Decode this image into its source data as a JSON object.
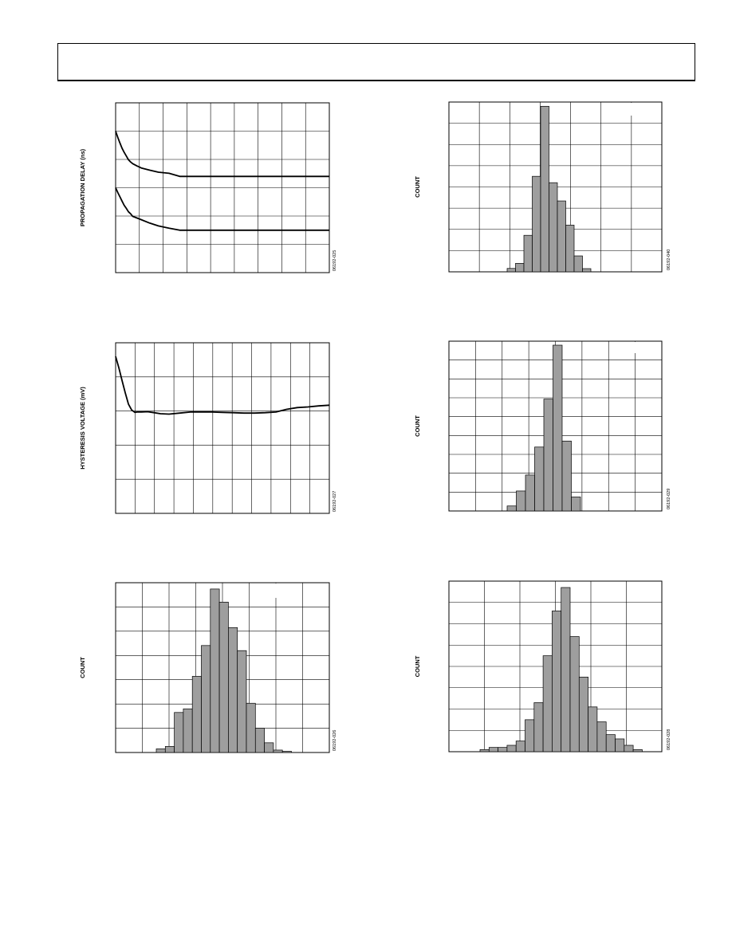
{
  "header": {
    "text": ""
  },
  "chart_data": [
    {
      "type": "line",
      "ylabel": "PROPAGATION DELAY (ns)",
      "figure_id": "06192-025",
      "grid": true,
      "xlim": [
        0,
        100
      ],
      "ylim": [
        0,
        6
      ],
      "series": [
        {
          "x": [
            0,
            1,
            2,
            3,
            4,
            5,
            6,
            7,
            8,
            10,
            12,
            16,
            20,
            25,
            30,
            40,
            50,
            60,
            70,
            80,
            90,
            100
          ],
          "y": [
            5.0,
            4.78,
            4.58,
            4.4,
            4.25,
            4.12,
            3.99,
            3.91,
            3.85,
            3.77,
            3.7,
            3.62,
            3.55,
            3.51,
            3.4,
            3.4,
            3.4,
            3.4,
            3.4,
            3.4,
            3.4,
            3.4
          ]
        },
        {
          "x": [
            0,
            1,
            2,
            3,
            4,
            5,
            6,
            7,
            8,
            10,
            12,
            16,
            20,
            25,
            30,
            40,
            50,
            60,
            70,
            80,
            90,
            100
          ],
          "y": [
            3.0,
            2.83,
            2.68,
            2.53,
            2.38,
            2.27,
            2.15,
            2.08,
            1.99,
            1.93,
            1.87,
            1.75,
            1.65,
            1.57,
            1.5,
            1.5,
            1.5,
            1.5,
            1.5,
            1.5,
            1.5,
            1.5
          ]
        }
      ]
    },
    {
      "type": "bar",
      "ylabel": "COUNT",
      "figure_id": "06192-040",
      "grid": true,
      "ylim": [
        0,
        8
      ],
      "values": [
        0.16,
        0.4,
        1.72,
        4.5,
        7.8,
        4.2,
        3.34,
        2.2,
        0.75,
        0.15
      ]
    },
    {
      "type": "line",
      "ylabel": "HYSTERESIS VOLTAGE (mV)",
      "figure_id": "06192-027",
      "grid": true,
      "xlim": [
        0,
        100
      ],
      "ylim": [
        0,
        5
      ],
      "series": [
        {
          "x": [
            0,
            1.5,
            3,
            4.5,
            6,
            7.5,
            9,
            10,
            12,
            15,
            18,
            21,
            25,
            30,
            35,
            40,
            45,
            50,
            55,
            60,
            65,
            70,
            75,
            80,
            85,
            90,
            95,
            100
          ],
          "y": [
            4.6,
            4.27,
            3.9,
            3.53,
            3.2,
            3.03,
            2.96,
            2.97,
            2.97,
            2.98,
            2.95,
            2.92,
            2.91,
            2.94,
            2.97,
            2.97,
            2.97,
            2.96,
            2.95,
            2.94,
            2.94,
            2.95,
            2.97,
            3.05,
            3.1,
            3.12,
            3.15,
            3.17
          ]
        }
      ]
    },
    {
      "type": "bar",
      "ylabel": "COUNT",
      "figure_id": "06192-029",
      "grid": true,
      "ylim": [
        0,
        8.5
      ],
      "values": [
        0.25,
        1.0,
        1.8,
        3.2,
        5.6,
        8.3,
        3.5,
        0.7
      ]
    },
    {
      "type": "bar",
      "ylabel": "COUNT",
      "figure_id": "06192-026",
      "grid": true,
      "ylim": [
        0,
        7
      ],
      "values": [
        0.15,
        0.25,
        1.65,
        1.8,
        3.14,
        4.41,
        6.74,
        6.2,
        5.15,
        4.2,
        2.03,
        1.0,
        0.4,
        0.1,
        0.05
      ]
    },
    {
      "type": "bar",
      "ylabel": "COUNT",
      "figure_id": "06192-028",
      "grid": true,
      "ylim": [
        0,
        8
      ],
      "values": [
        0.1,
        0.2,
        0.2,
        0.3,
        0.5,
        1.5,
        2.3,
        4.5,
        6.6,
        7.7,
        5.4,
        3.5,
        2.1,
        1.4,
        0.8,
        0.6,
        0.3,
        0.1
      ]
    }
  ]
}
